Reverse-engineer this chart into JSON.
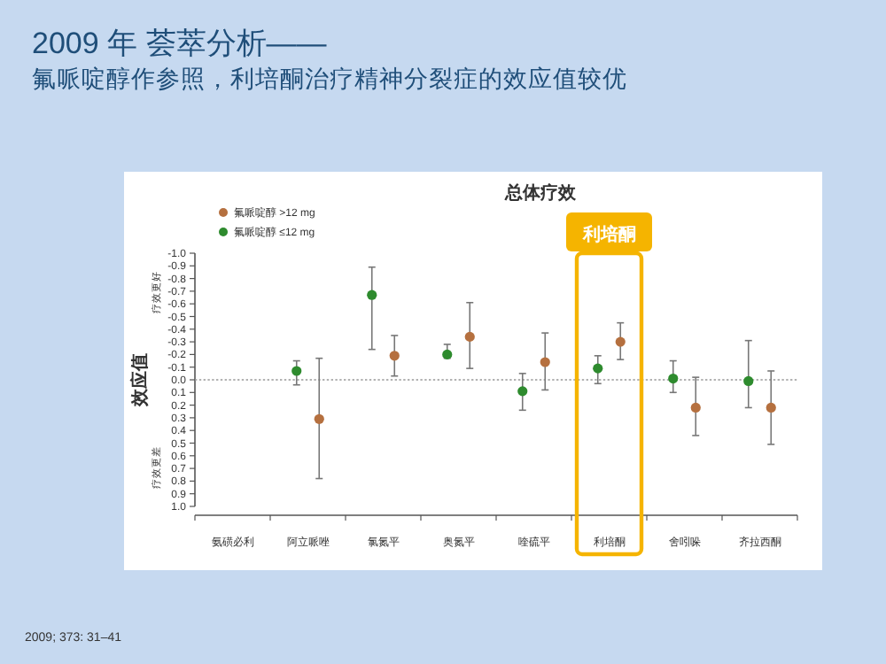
{
  "chart_data": {
    "type": "scatter",
    "title": "总体疗效",
    "subtitle": "2009 年 荟萃分析——",
    "ylabel": "效应值",
    "annotations": [
      "氟哌啶醇作参照，利培酮治疗精神分裂症的效应值较优",
      "疗效更好",
      "疗效更差",
      "2009; 373: 31–41",
      "利培酮"
    ],
    "categories": [
      "氨磺必利",
      "阿立哌唑",
      "氯氮平",
      "奥氮平",
      "喹硫平",
      "利培酮",
      "舍吲哚",
      "齐拉西酮"
    ],
    "series": [
      {
        "name": "氟哌啶醇 >12 mg",
        "color": "#b5703f",
        "values": [
          null,
          0.31,
          -0.19,
          -0.34,
          -0.14,
          -0.3,
          0.22,
          0.22
        ],
        "errors": [
          null,
          [
            -0.17,
            0.78
          ],
          [
            -0.35,
            -0.03
          ],
          [
            -0.61,
            -0.09
          ],
          [
            -0.37,
            0.08
          ],
          [
            -0.45,
            -0.16
          ],
          [
            -0.02,
            0.44
          ],
          [
            -0.07,
            0.51
          ]
        ]
      },
      {
        "name": "氟哌啶醇 ≤12 mg",
        "color": "#2e8b2e",
        "values": [
          null,
          -0.07,
          -0.67,
          -0.2,
          0.09,
          -0.09,
          -0.01,
          0.01
        ],
        "errors": [
          null,
          [
            -0.15,
            0.04
          ],
          [
            -0.89,
            -0.24
          ],
          [
            -0.28,
            -0.17
          ],
          [
            -0.05,
            0.24
          ],
          [
            -0.19,
            0.03
          ],
          [
            -0.15,
            0.1
          ],
          [
            -0.31,
            0.22
          ]
        ]
      }
    ],
    "ylim": [
      1.0,
      -1.0
    ],
    "yticks": [
      {
        "value": -1.0,
        "label": "-1.0"
      },
      {
        "value": -0.9,
        "label": "-0.9"
      },
      {
        "value": -0.8,
        "label": "-0.8"
      },
      {
        "value": -0.7,
        "label": "-0.7"
      },
      {
        "value": -0.6,
        "label": "-0.6"
      },
      {
        "value": -0.5,
        "label": "-0.5"
      },
      {
        "value": -0.4,
        "label": "-0.4"
      },
      {
        "value": -0.3,
        "label": "-0.3"
      },
      {
        "value": -0.2,
        "label": "-0.2"
      },
      {
        "value": -0.1,
        "label": "-0.1"
      },
      {
        "value": 0.0,
        "label": "0.0"
      },
      {
        "value": 0.1,
        "label": "0.1"
      },
      {
        "value": 0.2,
        "label": "0.2"
      },
      {
        "value": 0.3,
        "label": "0.3"
      },
      {
        "value": 0.4,
        "label": "0.4"
      },
      {
        "value": 0.5,
        "label": "0.5"
      },
      {
        "value": 0.6,
        "label": "0.6"
      },
      {
        "value": 0.7,
        "label": "0.7"
      },
      {
        "value": 0.8,
        "label": "0.8"
      },
      {
        "value": 0.9,
        "label": "0.9"
      },
      {
        "value": 1.0,
        "label": "1.0"
      }
    ],
    "ref_lines": [
      {
        "axis": "y",
        "value": 0,
        "color": "#999999",
        "line_style": "dotted"
      }
    ],
    "marker": "circle",
    "legend": "top left"
  }
}
